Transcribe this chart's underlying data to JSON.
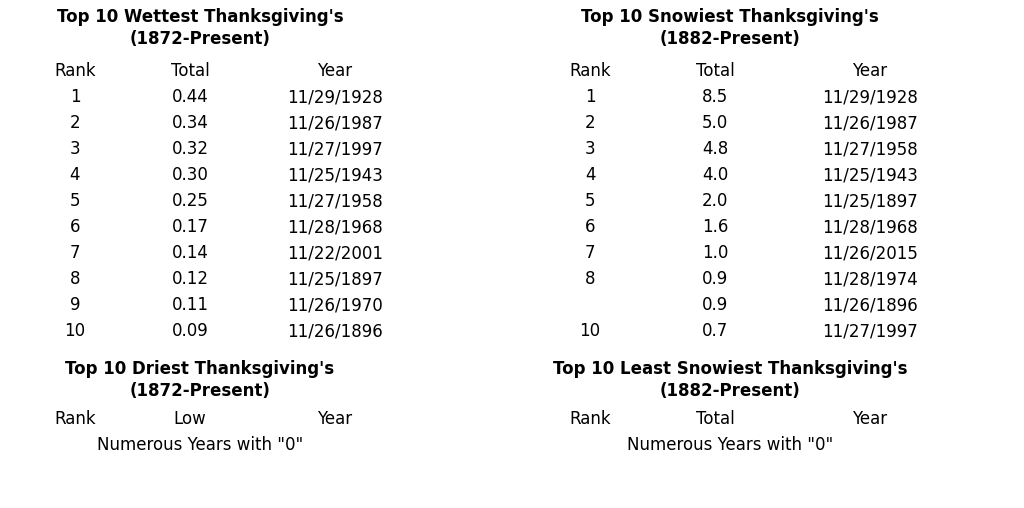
{
  "wettest_title": "Top 10 Wettest Thanksgiving's\n(1872-Present)",
  "wettest_headers": [
    "Rank",
    "Total",
    "Year"
  ],
  "wettest_rows": [
    [
      "1",
      "0.44",
      "11/29/1928"
    ],
    [
      "2",
      "0.34",
      "11/26/1987"
    ],
    [
      "3",
      "0.32",
      "11/27/1997"
    ],
    [
      "4",
      "0.30",
      "11/25/1943"
    ],
    [
      "5",
      "0.25",
      "11/27/1958"
    ],
    [
      "6",
      "0.17",
      "11/28/1968"
    ],
    [
      "7",
      "0.14",
      "11/22/2001"
    ],
    [
      "8",
      "0.12",
      "11/25/1897"
    ],
    [
      "9",
      "0.11",
      "11/26/1970"
    ],
    [
      "10",
      "0.09",
      "11/26/1896"
    ]
  ],
  "driest_title": "Top 10 Driest Thanksgiving's\n(1872-Present)",
  "driest_headers": [
    "Rank",
    "Low",
    "Year"
  ],
  "driest_note": "Numerous Years with \"0\"",
  "snowiest_title": "Top 10 Snowiest Thanksgiving's\n(1882-Present)",
  "snowiest_headers": [
    "Rank",
    "Total",
    "Year"
  ],
  "snowiest_rows": [
    [
      "1",
      "8.5",
      "11/29/1928"
    ],
    [
      "2",
      "5.0",
      "11/26/1987"
    ],
    [
      "3",
      "4.8",
      "11/27/1958"
    ],
    [
      "4",
      "4.0",
      "11/25/1943"
    ],
    [
      "5",
      "2.0",
      "11/25/1897"
    ],
    [
      "6",
      "1.6",
      "11/28/1968"
    ],
    [
      "7",
      "1.0",
      "11/26/2015"
    ],
    [
      "8",
      "0.9",
      "11/28/1974"
    ],
    [
      "",
      "0.9",
      "11/26/1896"
    ],
    [
      "10",
      "0.7",
      "11/27/1997"
    ]
  ],
  "least_snowiest_title": "Top 10 Least Snowiest Thanksgiving's\n(1882-Present)",
  "least_snowiest_headers": [
    "Rank",
    "Total",
    "Year"
  ],
  "least_snowiest_note": "Numerous Years with \"0\"",
  "bg_color": "#ffffff",
  "text_color": "#000000",
  "title_fontsize": 12,
  "header_fontsize": 12,
  "data_fontsize": 12
}
